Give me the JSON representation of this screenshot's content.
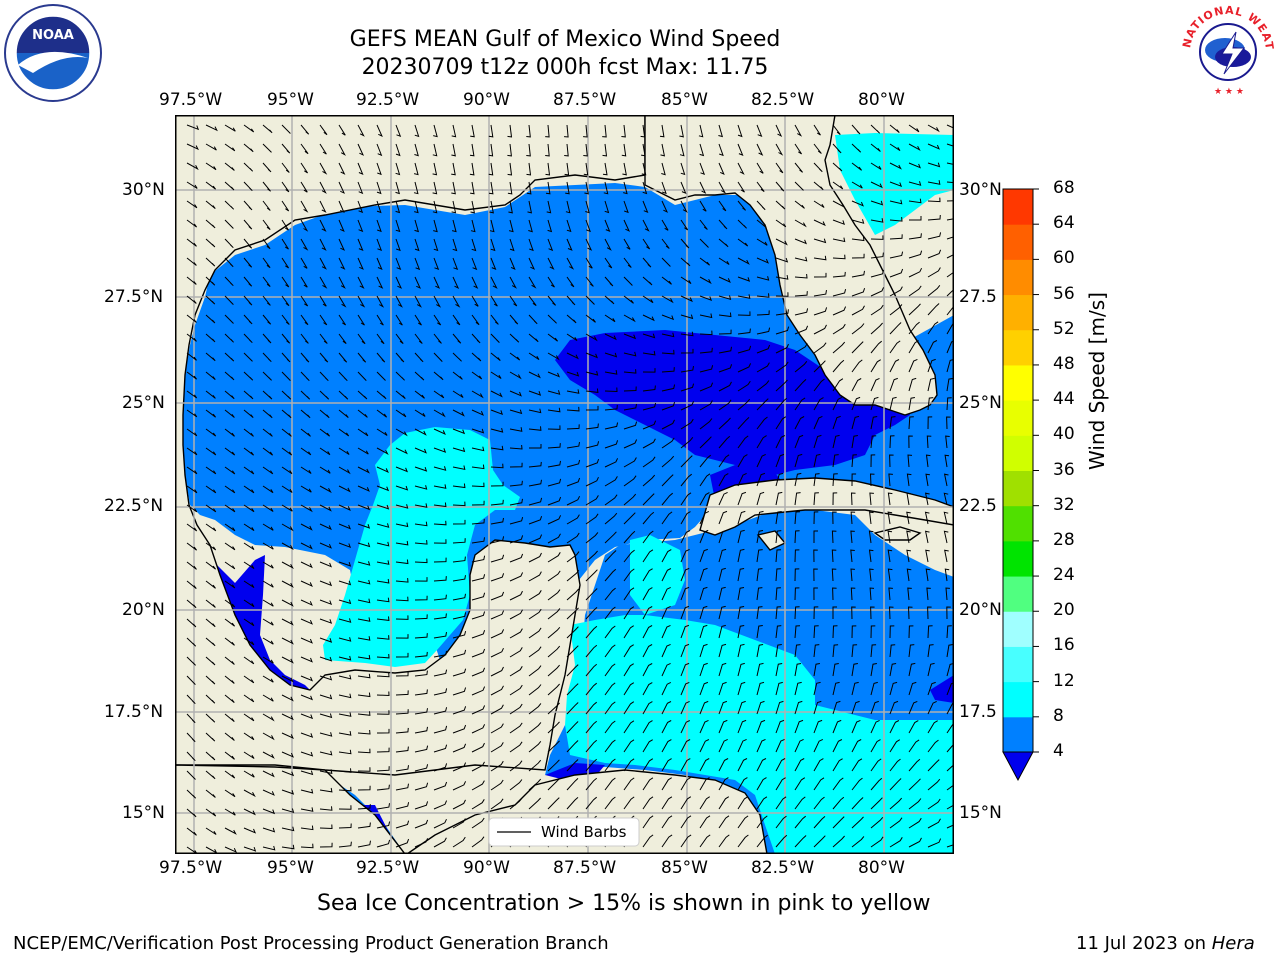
{
  "header": {
    "title_line1": "GEFS MEAN Gulf of Mexico Wind Speed",
    "title_line2": "20230709 t12z 000h fcst   Max: 11.75"
  },
  "logos": {
    "noaa": {
      "name": "noaa-logo",
      "text": "NOAA",
      "ring_text": "NATIONAL OCEANIC AND ATMOSPHERIC ADMINISTRATION · U.S. DEPARTMENT OF COMMERCE"
    },
    "nws": {
      "name": "nws-logo",
      "ring_text": "NATIONAL WEATHER SERVICE"
    }
  },
  "map": {
    "lon_ticks": [
      "97.5°W",
      "95°W",
      "92.5°W",
      "90°W",
      "87.5°W",
      "85°W",
      "82.5°W",
      "80°W"
    ],
    "lat_ticks_left": [
      "30°N",
      "27.5°N",
      "25°N",
      "22.5°N",
      "20°N",
      "17.5°N",
      "15°N"
    ],
    "lat_ticks_right": [
      "30°N",
      "27.5",
      "25°N",
      "22.5",
      "20°N",
      "17.5",
      "15°N"
    ],
    "legend_label": "Wind Barbs",
    "colors": {
      "land": "#efeedc",
      "ocean_4_8": "#0080ff",
      "ocean_0_4": "#0000ee",
      "ocean_8_12": "#00ffff",
      "grid": "#b0b0b0"
    }
  },
  "colorbar": {
    "label": "Wind Speed [m/s]",
    "ticks": [
      "4",
      "8",
      "12",
      "16",
      "20",
      "24",
      "28",
      "32",
      "36",
      "40",
      "44",
      "48",
      "52",
      "56",
      "60",
      "64",
      "68"
    ],
    "colors": [
      "#0080ff",
      "#00ffff",
      "#48ffff",
      "#a0ffff",
      "#50ff80",
      "#00e400",
      "#50e000",
      "#a0e000",
      "#d0ff00",
      "#e8ff00",
      "#ffff00",
      "#ffd000",
      "#ffb000",
      "#ff8c00",
      "#ff6000",
      "#ff3800",
      "#ff0000"
    ],
    "under_color": "#0000ee"
  },
  "subtitle": "Sea Ice Concentration > 15% is shown in pink to yellow",
  "footer": {
    "left": "NCEP/EMC/Verification Post Processing Product Generation Branch",
    "right_prefix": "11 Jul 2023 on ",
    "right_host": "Hera"
  }
}
